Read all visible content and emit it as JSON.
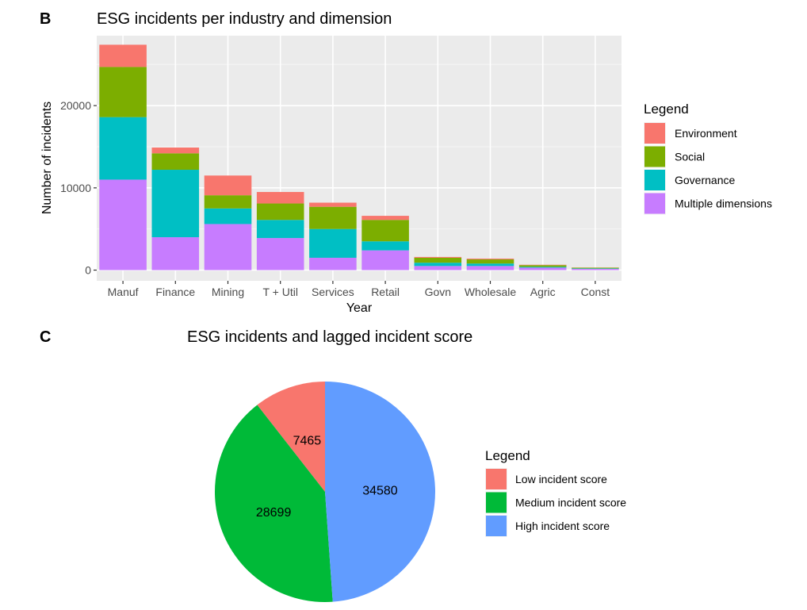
{
  "chart_data": [
    {
      "panel": "B",
      "type": "bar",
      "stacked": true,
      "title": "ESG incidents per industry and dimension",
      "xlabel": "Year",
      "ylabel": "Number of incidents",
      "ylim": [
        -1300,
        28500
      ],
      "yticks": [
        0,
        10000,
        20000
      ],
      "ytick_labels": [
        "0",
        "10000",
        "20000"
      ],
      "grid": true,
      "legend_title": "Legend",
      "legend_position": "right",
      "categories": [
        "Manuf",
        "Finance",
        "Mining",
        "T + Util",
        "Services",
        "Retail",
        "Govn",
        "Wholesale",
        "Agric",
        "Const"
      ],
      "series": [
        {
          "name": "Multiple dimensions",
          "color": "#C77CFF",
          "values": [
            11000,
            4000,
            5600,
            3900,
            1500,
            2400,
            500,
            500,
            300,
            150
          ]
        },
        {
          "name": "Governance",
          "color": "#00BFC4",
          "values": [
            7600,
            8200,
            1900,
            2200,
            3500,
            1100,
            400,
            300,
            100,
            60
          ]
        },
        {
          "name": "Social",
          "color": "#7CAE00",
          "values": [
            6100,
            2000,
            1600,
            2000,
            2700,
            2600,
            600,
            500,
            200,
            80
          ]
        },
        {
          "name": "Environment",
          "color": "#F8766D",
          "values": [
            2700,
            700,
            2400,
            1400,
            500,
            500,
            100,
            100,
            50,
            20
          ]
        }
      ],
      "legend_order": [
        "Environment",
        "Social",
        "Governance",
        "Multiple dimensions"
      ]
    },
    {
      "panel": "C",
      "type": "pie",
      "title": "ESG incidents and lagged incident score",
      "legend_title": "Legend",
      "legend_position": "right",
      "slices": [
        {
          "label": "Low incident score",
          "value": 7465,
          "value_label": "7465",
          "color": "#F8766D"
        },
        {
          "label": "Medium incident score",
          "value": 28699,
          "value_label": "28699",
          "color": "#00BA38"
        },
        {
          "label": "High incident score",
          "value": 34580,
          "value_label": "34580",
          "color": "#619CFF"
        }
      ]
    }
  ]
}
